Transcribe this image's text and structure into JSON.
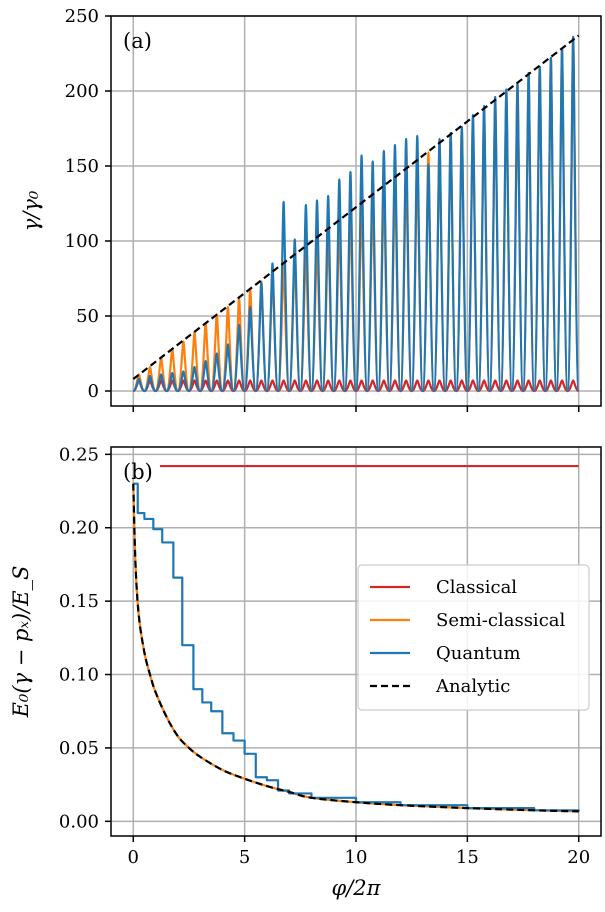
{
  "chart_data": [
    {
      "type": "line",
      "panel_label": "(a)",
      "xlabel": "",
      "ylabel": "γ/γ₀",
      "xlim": [
        -1,
        21
      ],
      "ylim": [
        -10,
        250
      ],
      "xticks": [
        0,
        5,
        10,
        15,
        20
      ],
      "yticks": [
        0,
        50,
        100,
        150,
        200,
        250
      ],
      "ytick_labels": [
        "0",
        "50",
        "100",
        "150",
        "200",
        "250"
      ],
      "grid": true,
      "series": [
        {
          "name": "Classical",
          "color": "#d62728",
          "style": "oscillation",
          "period": 0.5,
          "peaks": [
            [
              0.25,
              7
            ],
            [
              0.75,
              7
            ],
            [
              1.25,
              7
            ],
            [
              1.75,
              7
            ],
            [
              2.25,
              7
            ],
            [
              2.75,
              7
            ],
            [
              3.25,
              7
            ],
            [
              3.75,
              7
            ],
            [
              4.25,
              7
            ],
            [
              4.75,
              7
            ],
            [
              5.25,
              7
            ],
            [
              5.75,
              7
            ],
            [
              6.25,
              7
            ],
            [
              6.75,
              7
            ],
            [
              7.25,
              7
            ],
            [
              7.75,
              7
            ],
            [
              8.25,
              7
            ],
            [
              8.75,
              7
            ],
            [
              9.25,
              7
            ],
            [
              9.75,
              7
            ],
            [
              10.25,
              7
            ],
            [
              10.75,
              7
            ],
            [
              11.25,
              7
            ],
            [
              11.75,
              7
            ],
            [
              12.25,
              7
            ],
            [
              12.75,
              7
            ],
            [
              13.25,
              7
            ],
            [
              13.75,
              7
            ],
            [
              14.25,
              7
            ],
            [
              14.75,
              7
            ],
            [
              15.25,
              7
            ],
            [
              15.75,
              7
            ],
            [
              16.25,
              7
            ],
            [
              16.75,
              7
            ],
            [
              17.25,
              7
            ],
            [
              17.75,
              7
            ],
            [
              18.25,
              7
            ],
            [
              18.75,
              7
            ],
            [
              19.25,
              7
            ],
            [
              19.75,
              7
            ]
          ]
        },
        {
          "name": "Semi-classical",
          "color": "#ff7f0e",
          "style": "oscillation",
          "period": 0.5,
          "peaks": [
            [
              0.25,
              11
            ],
            [
              0.75,
              16
            ],
            [
              1.25,
              22
            ],
            [
              1.75,
              28
            ],
            [
              2.25,
              33
            ],
            [
              2.75,
              39
            ],
            [
              3.25,
              45
            ],
            [
              3.75,
              51
            ],
            [
              4.25,
              56
            ],
            [
              4.75,
              62
            ],
            [
              5.25,
              68
            ],
            [
              5.75,
              73
            ],
            [
              6.25,
              79
            ],
            [
              6.75,
              85
            ],
            [
              7.25,
              91
            ],
            [
              7.75,
              96
            ],
            [
              8.25,
              102
            ],
            [
              8.75,
              108
            ],
            [
              9.25,
              113
            ],
            [
              9.75,
              119
            ],
            [
              10.25,
              125
            ],
            [
              10.75,
              131
            ],
            [
              11.25,
              136
            ],
            [
              11.75,
              142
            ],
            [
              12.25,
              148
            ],
            [
              12.75,
              153
            ],
            [
              13.25,
              159
            ],
            [
              13.75,
              165
            ],
            [
              14.25,
              171
            ],
            [
              14.75,
              176
            ],
            [
              15.25,
              182
            ],
            [
              15.75,
              188
            ],
            [
              16.25,
              193
            ],
            [
              16.75,
              199
            ],
            [
              17.25,
              205
            ],
            [
              17.75,
              211
            ],
            [
              18.25,
              216
            ],
            [
              18.75,
              222
            ],
            [
              19.25,
              228
            ],
            [
              19.75,
              236
            ]
          ]
        },
        {
          "name": "Quantum",
          "color": "#1f77b4",
          "style": "oscillation",
          "period": 0.5,
          "peaks": [
            [
              0.25,
              8
            ],
            [
              0.75,
              10
            ],
            [
              1.25,
              11
            ],
            [
              1.75,
              12
            ],
            [
              2.25,
              13
            ],
            [
              2.75,
              16
            ],
            [
              3.25,
              20
            ],
            [
              3.75,
              25
            ],
            [
              4.25,
              31
            ],
            [
              4.75,
              44
            ],
            [
              5.25,
              56
            ],
            [
              5.75,
              72
            ],
            [
              6.25,
              85
            ],
            [
              6.75,
              126
            ],
            [
              7.25,
              101
            ],
            [
              7.75,
              124
            ],
            [
              8.25,
              127
            ],
            [
              8.75,
              130
            ],
            [
              9.25,
              141
            ],
            [
              9.75,
              146
            ],
            [
              10.25,
              157
            ],
            [
              10.75,
              153
            ],
            [
              11.25,
              160
            ],
            [
              11.75,
              164
            ],
            [
              12.25,
              168
            ],
            [
              12.75,
              170
            ],
            [
              13.25,
              151
            ],
            [
              13.75,
              168
            ],
            [
              14.25,
              172
            ],
            [
              14.75,
              176
            ],
            [
              15.25,
              184
            ],
            [
              15.75,
              190
            ],
            [
              16.25,
              196
            ],
            [
              16.75,
              201
            ],
            [
              17.25,
              205
            ],
            [
              17.75,
              212
            ],
            [
              18.25,
              216
            ],
            [
              18.75,
              222
            ],
            [
              19.25,
              228
            ],
            [
              19.75,
              236
            ]
          ]
        },
        {
          "name": "Analytic",
          "color": "#000000",
          "style": "dashed",
          "x": [
            0,
            20
          ],
          "y": [
            8,
            237
          ]
        }
      ]
    },
    {
      "type": "line",
      "panel_label": "(b)",
      "xlabel": "φ/2π",
      "ylabel": "E₀(γ − pₓ)/E_S",
      "xlim": [
        -1,
        21
      ],
      "ylim": [
        -0.01,
        0.255
      ],
      "xticks": [
        0,
        5,
        10,
        15,
        20
      ],
      "xtick_labels": [
        "0",
        "5",
        "10",
        "15",
        "20"
      ],
      "yticks": [
        0.0,
        0.05,
        0.1,
        0.15,
        0.2,
        0.25
      ],
      "ytick_labels": [
        "0.00",
        "0.05",
        "0.10",
        "0.15",
        "0.20",
        "0.25"
      ],
      "grid": true,
      "legend": {
        "placement": "center-right",
        "entries": [
          "Classical",
          "Semi-classical",
          "Quantum",
          "Analytic"
        ]
      },
      "series": [
        {
          "name": "Classical",
          "color": "#d62728",
          "style": "solid",
          "x": [
            1.2,
            20
          ],
          "y": [
            0.242,
            0.242
          ]
        },
        {
          "name": "Semi-classical",
          "color": "#ff7f0e",
          "style": "solid",
          "x": [
            0,
            0.1,
            0.25,
            0.5,
            0.75,
            1,
            1.5,
            2,
            2.5,
            3,
            4,
            5,
            6,
            7,
            8,
            10,
            12,
            15,
            18,
            20
          ],
          "y": [
            0.23,
            0.175,
            0.14,
            0.115,
            0.1,
            0.088,
            0.071,
            0.058,
            0.05,
            0.044,
            0.035,
            0.029,
            0.024,
            0.02,
            0.016,
            0.013,
            0.011,
            0.009,
            0.0075,
            0.0068
          ]
        },
        {
          "name": "Quantum",
          "color": "#1f77b4",
          "style": "step",
          "x": [
            0,
            0.2,
            0.5,
            0.9,
            1.3,
            1.8,
            2.2,
            2.7,
            3.1,
            3.5,
            4,
            4.5,
            5,
            5.5,
            6,
            6.5,
            7,
            8,
            10,
            12,
            15,
            18,
            20
          ],
          "y": [
            0.23,
            0.21,
            0.206,
            0.199,
            0.19,
            0.166,
            0.12,
            0.09,
            0.081,
            0.075,
            0.06,
            0.055,
            0.046,
            0.03,
            0.028,
            0.021,
            0.019,
            0.016,
            0.013,
            0.011,
            0.009,
            0.0075,
            0.0068
          ]
        },
        {
          "name": "Analytic",
          "color": "#000000",
          "style": "dashed",
          "x": [
            0,
            0.1,
            0.25,
            0.5,
            0.75,
            1,
            1.5,
            2,
            2.5,
            3,
            4,
            5,
            6,
            7,
            8,
            10,
            12,
            15,
            18,
            20
          ],
          "y": [
            0.23,
            0.175,
            0.14,
            0.115,
            0.1,
            0.088,
            0.071,
            0.058,
            0.05,
            0.044,
            0.035,
            0.029,
            0.024,
            0.02,
            0.016,
            0.013,
            0.011,
            0.009,
            0.0075,
            0.0068
          ]
        }
      ]
    }
  ]
}
